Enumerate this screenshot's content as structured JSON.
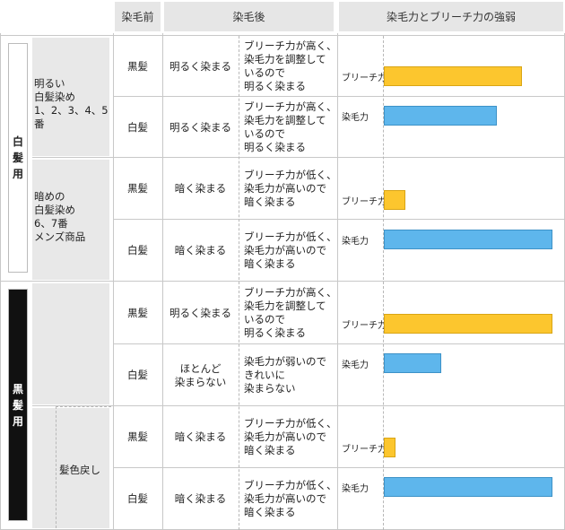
{
  "header": {
    "before": "染毛前",
    "after": "染毛後",
    "strength": "染毛力とブリーチ力の強弱"
  },
  "sections": [
    {
      "label_chars": [
        "白",
        "髪",
        "用"
      ],
      "bg": "#ffffff",
      "fg": "#222222"
    },
    {
      "label_chars": [
        "黒",
        "髪",
        "用"
      ],
      "bg": "#111111",
      "fg": "#ffffff"
    }
  ],
  "groups": [
    {
      "label": "明るい\n白髪染め\n1、2、3、4、5番"
    },
    {
      "label": "暗めの\n白髪染め\n6、7番\nメンズ商品"
    },
    {
      "label": ""
    },
    {
      "label": "髪色戻し"
    }
  ],
  "rows": [
    {
      "before": "黒髪",
      "after": "明るく染まる",
      "desc": "ブリーチ力が高く、\n染毛力を調整して\nいるので\n明るく染まる"
    },
    {
      "before": "白髪",
      "after": "明るく染まる",
      "desc": "ブリーチ力が高く、\n染毛力を調整して\nいるので\n明るく染まる"
    },
    {
      "before": "黒髪",
      "after": "暗く染まる",
      "desc": "ブリーチ力が低く、\n染毛力が高いので\n暗く染まる"
    },
    {
      "before": "白髪",
      "after": "暗く染まる",
      "desc": "ブリーチ力が低く、\n染毛力が高いので\n暗く染まる"
    },
    {
      "before": "黒髪",
      "after": "明るく染まる",
      "desc": "ブリーチ力が高く、\n染毛力を調整して\nいるので\n明るく染まる"
    },
    {
      "before": "白髪",
      "after": "ほとんど\n染まらない",
      "desc": "染毛力が弱いので\nきれいに\n染まらない"
    },
    {
      "before": "黒髪",
      "after": "暗く染まる",
      "desc": "ブリーチ力が低く、\n染毛力が高いので\n暗く染まる"
    },
    {
      "before": "白髪",
      "after": "暗く染まる",
      "desc": "ブリーチ力が低く、\n染毛力が高いので\n暗く染まる"
    }
  ],
  "bar_labels": {
    "bleach": "ブリーチ力",
    "dye": "染毛力"
  },
  "colors": {
    "bleach": "#fcc62e",
    "dye": "#5eb6ec"
  },
  "chart_data": {
    "type": "bar",
    "series_names": [
      "ブリーチ力",
      "染毛力"
    ],
    "groups": [
      {
        "bleach": 0.82,
        "dye": 0.67
      },
      {
        "bleach": 0.13,
        "dye": 1.0
      },
      {
        "bleach": 1.0,
        "dye": 0.34
      },
      {
        "bleach": 0.07,
        "dye": 1.0
      }
    ]
  }
}
